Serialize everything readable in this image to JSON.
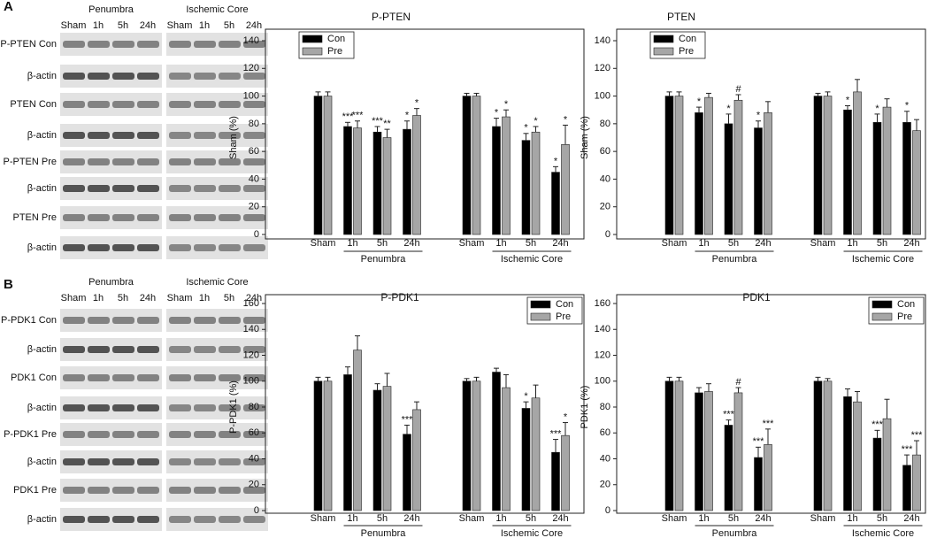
{
  "panels": [
    "A",
    "B"
  ],
  "blots": [
    {
      "groups": [
        "Penumbra",
        "Ischemic Core"
      ],
      "lanes": [
        "Sham",
        "1h",
        "5h",
        "24h"
      ],
      "rows": [
        "P-PTEN Con",
        "β-actin",
        "PTEN Con",
        "β-actin",
        "P-PTEN Pre",
        "β-actin",
        "PTEN Pre",
        "β-actin"
      ]
    },
    {
      "groups": [
        "Penumbra",
        "Ischemic Core"
      ],
      "lanes": [
        "Sham",
        "1h",
        "5h",
        "24h"
      ],
      "rows": [
        "P-PDK1 Con",
        "β-actin",
        "PDK1 Con",
        "β-actin",
        "P-PDK1 Pre",
        "β-actin",
        "PDK1 Pre",
        "β-actin"
      ]
    }
  ],
  "chart_data": [
    {
      "type": "bar",
      "title": "P-PTEN",
      "y_label": "Sham (%)",
      "categories": [
        "Sham",
        "1h",
        "5h",
        "24h",
        "Sham",
        "1h",
        "5h",
        "24h"
      ],
      "groups": [
        "Penumbra",
        "Ischemic Core"
      ],
      "ylim": [
        0,
        140
      ],
      "yticks": [
        0,
        20,
        40,
        60,
        80,
        100,
        120,
        140
      ],
      "legend": "upper left",
      "series": [
        {
          "name": "Con",
          "color": "#000000",
          "values": [
            100,
            78,
            74,
            76,
            100,
            78,
            68,
            45
          ],
          "errors": [
            3,
            3,
            4,
            6,
            2,
            6,
            5,
            4
          ],
          "annotations": [
            null,
            "***",
            "***",
            "*",
            null,
            "*",
            "*",
            "*"
          ]
        },
        {
          "name": "Pre",
          "color": "#a6a6a6",
          "values": [
            100,
            77,
            70,
            86,
            100,
            85,
            74,
            65
          ],
          "errors": [
            3,
            5,
            6,
            5,
            2,
            5,
            4,
            14
          ],
          "annotations": [
            null,
            "***",
            "**",
            "*",
            null,
            "*",
            "*",
            "*"
          ]
        }
      ]
    },
    {
      "type": "bar",
      "title": "PTEN",
      "y_label": "Sham (%)",
      "categories": [
        "Sham",
        "1h",
        "5h",
        "24h",
        "Sham",
        "1h",
        "5h",
        "24h"
      ],
      "groups": [
        "Penumbra",
        "Ischemic Core"
      ],
      "ylim": [
        0,
        140
      ],
      "yticks": [
        0,
        20,
        40,
        60,
        80,
        100,
        120,
        140
      ],
      "legend": "upper left",
      "series": [
        {
          "name": "Con",
          "color": "#000000",
          "values": [
            100,
            88,
            80,
            77,
            100,
            90,
            81,
            81
          ],
          "errors": [
            3,
            4,
            7,
            5,
            2,
            3,
            6,
            8
          ],
          "annotations": [
            null,
            "*",
            "*",
            "*",
            null,
            "*",
            "*",
            "*"
          ]
        },
        {
          "name": "Pre",
          "color": "#a6a6a6",
          "values": [
            100,
            99,
            97,
            88,
            100,
            103,
            92,
            75
          ],
          "errors": [
            3,
            3,
            4,
            8,
            3,
            9,
            6,
            8
          ],
          "annotations": [
            null,
            null,
            "#",
            null,
            null,
            null,
            null,
            null
          ]
        }
      ]
    },
    {
      "type": "bar",
      "title": "P-PDK1",
      "y_label": "P-PDK1 (%)",
      "categories": [
        "Sham",
        "1h",
        "5h",
        "24h",
        "Sham",
        "1h",
        "5h",
        "24h"
      ],
      "groups": [
        "Penumbra",
        "Ischemic Core"
      ],
      "ylim": [
        0,
        160
      ],
      "yticks": [
        0,
        20,
        40,
        60,
        80,
        100,
        120,
        140,
        160
      ],
      "legend": "upper right",
      "series": [
        {
          "name": "Con",
          "color": "#000000",
          "values": [
            100,
            105,
            93,
            59,
            100,
            107,
            79,
            45
          ],
          "errors": [
            3,
            6,
            5,
            7,
            2,
            3,
            5,
            10
          ],
          "annotations": [
            null,
            null,
            null,
            "***",
            null,
            null,
            "*",
            "***"
          ]
        },
        {
          "name": "Pre",
          "color": "#a6a6a6",
          "values": [
            100,
            124,
            96,
            78,
            100,
            95,
            87,
            58
          ],
          "errors": [
            3,
            11,
            10,
            6,
            3,
            10,
            10,
            10
          ],
          "annotations": [
            null,
            null,
            null,
            null,
            null,
            null,
            null,
            "*"
          ]
        }
      ]
    },
    {
      "type": "bar",
      "title": "PDK1",
      "y_label": "PDK1 (%)",
      "categories": [
        "Sham",
        "1h",
        "5h",
        "24h",
        "Sham",
        "1h",
        "5h",
        "24h"
      ],
      "groups": [
        "Penumbra",
        "Ischemic Core"
      ],
      "ylim": [
        0,
        160
      ],
      "yticks": [
        0,
        20,
        40,
        60,
        80,
        100,
        120,
        140,
        160
      ],
      "legend": "upper right",
      "series": [
        {
          "name": "Con",
          "color": "#000000",
          "values": [
            100,
            91,
            66,
            41,
            100,
            88,
            56,
            35
          ],
          "errors": [
            3,
            4,
            4,
            8,
            3,
            6,
            6,
            8
          ],
          "annotations": [
            null,
            null,
            "***",
            "***",
            null,
            null,
            "***",
            "***"
          ]
        },
        {
          "name": "Pre",
          "color": "#a6a6a6",
          "values": [
            100,
            92,
            91,
            51,
            100,
            84,
            71,
            43
          ],
          "errors": [
            3,
            6,
            4,
            12,
            2,
            8,
            15,
            11
          ],
          "annotations": [
            null,
            null,
            "#",
            "***",
            null,
            null,
            null,
            "***"
          ]
        }
      ]
    }
  ]
}
